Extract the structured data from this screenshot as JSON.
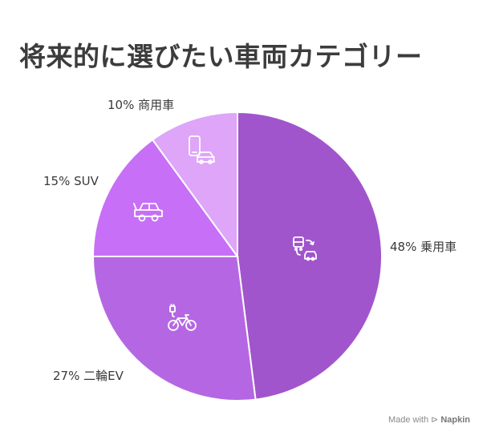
{
  "chart_data": {
    "type": "pie",
    "title": "将来的に選びたい車両カテゴリー",
    "slices": [
      {
        "label": "乗用車",
        "value": 48,
        "value_text": "48%",
        "color": "#a155cc",
        "icon": "car-exchange-icon"
      },
      {
        "label": "二輪EV",
        "value": 27,
        "value_text": "27%",
        "color": "#b567e3",
        "icon": "electric-bicycle-icon"
      },
      {
        "label": "SUV",
        "value": 15,
        "value_text": "15%",
        "color": "#c76ff6",
        "icon": "suv-icon"
      },
      {
        "label": "商用車",
        "value": 10,
        "value_text": "10%",
        "color": "#dea5f9",
        "icon": "phone-delivery-car-icon"
      }
    ]
  },
  "footer": {
    "made_with": "Made with",
    "brand": "Napkin"
  }
}
